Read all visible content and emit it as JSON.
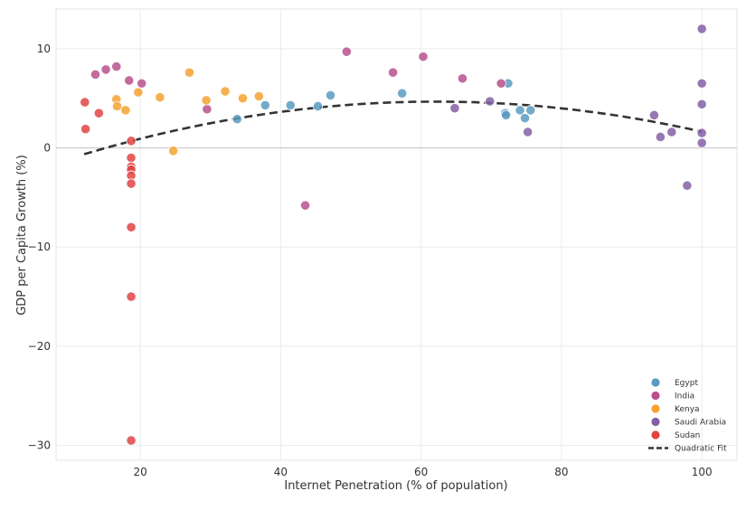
{
  "chart_data": {
    "type": "scatter",
    "title": "",
    "xlabel": "Internet Penetration (% of population)",
    "ylabel": "GDP per Capita Growth (%)",
    "xlim": [
      8,
      105
    ],
    "ylim": [
      -31.5,
      14.0
    ],
    "xticks": [
      20,
      40,
      60,
      80,
      100
    ],
    "yticks": [
      -30,
      -20,
      -10,
      0,
      10
    ],
    "grid": true,
    "legend_position": "bottom-right",
    "series": [
      {
        "name": "Egypt",
        "color": "#5b9bbf",
        "points": [
          [
            33.8,
            2.9
          ],
          [
            37.8,
            4.3
          ],
          [
            41.4,
            4.3
          ],
          [
            45.3,
            4.2
          ],
          [
            47.1,
            5.3
          ],
          [
            57.3,
            5.5
          ],
          [
            72.0,
            3.5
          ],
          [
            72.1,
            3.3
          ],
          [
            72.4,
            6.5
          ],
          [
            74.1,
            3.8
          ],
          [
            74.8,
            3.0
          ],
          [
            75.6,
            3.8
          ]
        ]
      },
      {
        "name": "India",
        "color": "#b8508d",
        "points": [
          [
            13.6,
            7.4
          ],
          [
            15.1,
            7.9
          ],
          [
            16.6,
            8.2
          ],
          [
            18.4,
            6.8
          ],
          [
            20.2,
            6.5
          ],
          [
            29.5,
            3.9
          ],
          [
            43.5,
            -5.8
          ],
          [
            49.4,
            9.7
          ],
          [
            56.0,
            7.6
          ],
          [
            60.3,
            9.2
          ],
          [
            65.9,
            7.0
          ],
          [
            71.4,
            6.5
          ]
        ]
      },
      {
        "name": "Kenya",
        "color": "#f5a230",
        "points": [
          [
            16.6,
            4.9
          ],
          [
            16.7,
            4.2
          ],
          [
            17.9,
            3.8
          ],
          [
            19.7,
            5.6
          ],
          [
            22.8,
            5.1
          ],
          [
            24.7,
            -0.3
          ],
          [
            27.0,
            7.6
          ],
          [
            29.4,
            4.8
          ],
          [
            32.1,
            5.7
          ],
          [
            34.6,
            5.0
          ],
          [
            36.9,
            5.2
          ]
        ]
      },
      {
        "name": "Saudi Arabia",
        "color": "#8460a6",
        "points": [
          [
            64.8,
            4.0
          ],
          [
            69.8,
            4.7
          ],
          [
            75.2,
            1.6
          ],
          [
            93.2,
            3.3
          ],
          [
            94.1,
            1.1
          ],
          [
            95.7,
            1.6
          ],
          [
            97.9,
            -3.8
          ],
          [
            100.0,
            12.0
          ],
          [
            100.0,
            6.5
          ],
          [
            100.0,
            4.4
          ],
          [
            100.0,
            1.5
          ],
          [
            100.0,
            0.5
          ]
        ]
      },
      {
        "name": "Sudan",
        "color": "#e04444",
        "points": [
          [
            12.1,
            4.6
          ],
          [
            12.2,
            1.9
          ],
          [
            14.1,
            3.5
          ],
          [
            18.7,
            0.7
          ],
          [
            18.7,
            -1.0
          ],
          [
            18.7,
            -1.9
          ],
          [
            18.7,
            -2.2
          ],
          [
            18.7,
            -2.8
          ],
          [
            18.7,
            -3.6
          ],
          [
            18.7,
            -8.0
          ],
          [
            18.7,
            -15.0
          ],
          [
            18.7,
            -29.5
          ]
        ]
      }
    ],
    "fit": {
      "name": "Quadratic Fit",
      "color": "#333333",
      "style": "dashed",
      "x_range": [
        12,
        100
      ],
      "coefficients": [
        -3.48,
        0.2623,
        -0.002112
      ]
    }
  }
}
